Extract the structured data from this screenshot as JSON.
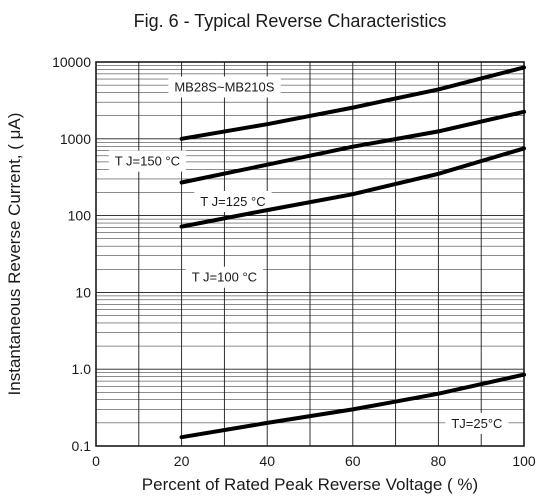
{
  "chart_data": {
    "type": "line",
    "title": "Fig. 6  - Typical Reverse Characteristics",
    "xlabel": "Percent of Rated Peak Reverse Voltage ( %)",
    "ylabel": "Instantaneous Reverse Current, (  μA)",
    "xlim": [
      0,
      100
    ],
    "ylim": [
      0.1,
      10000
    ],
    "yscale": "log",
    "grid": true,
    "x_ticks": [
      "0",
      "20",
      "40",
      "60",
      "80",
      "100"
    ],
    "y_ticks": [
      "10000",
      "1000",
      "100",
      "10",
      "1.0",
      "0.1"
    ],
    "x": [
      20,
      40,
      60,
      80,
      100
    ],
    "series": [
      {
        "values": [
          1000,
          1550,
          2550,
          4400,
          8500
        ]
      },
      {
        "values": [
          270,
          460,
          790,
          1250,
          2250
        ]
      },
      {
        "values": [
          72,
          118,
          190,
          350,
          750
        ]
      },
      {
        "values": [
          0.13,
          0.2,
          0.3,
          0.48,
          0.85
        ]
      }
    ],
    "annotations": [
      {
        "text": "MB28S~MB210S",
        "x": 30,
        "y": 4800
      },
      {
        "text": "T J=150  °C",
        "x": 12,
        "y": 520
      },
      {
        "text": "T J=125  °C",
        "x": 32,
        "y": 155
      },
      {
        "text": "T J=100  °C",
        "x": 30,
        "y": 16
      },
      {
        "text": "TJ=25°C",
        "x": 89,
        "y": 0.2
      }
    ]
  }
}
